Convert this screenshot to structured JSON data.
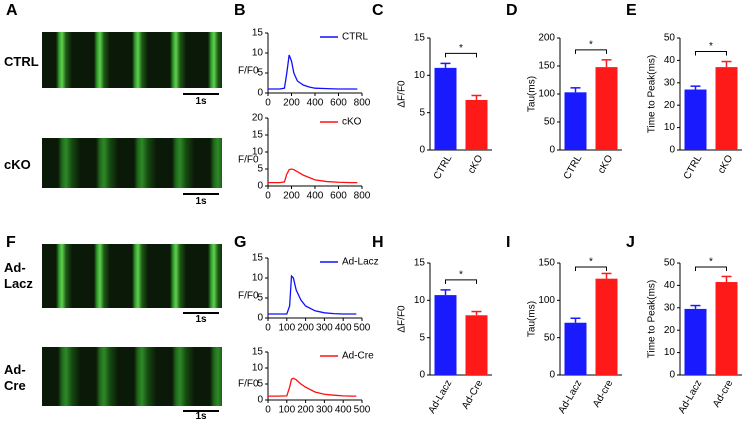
{
  "panel_letters": [
    "A",
    "B",
    "C",
    "D",
    "E",
    "F",
    "G",
    "H",
    "I",
    "J"
  ],
  "images": [
    {
      "label": "CTRL",
      "scale": "1s"
    },
    {
      "label": "cKO",
      "scale": "1s"
    },
    {
      "label": "Ad-\nLacz",
      "scale": "1s"
    },
    {
      "label": "Ad-\nCre",
      "scale": "1s"
    }
  ],
  "chart_data": [
    {
      "type": "line",
      "ylabel": "F/F0",
      "legend": "upper right",
      "xlim": [
        0,
        800
      ],
      "xticks": [
        0,
        200,
        400,
        600,
        800
      ],
      "ylim": [
        0,
        15
      ],
      "yticks": [
        0,
        5,
        10,
        15
      ],
      "x": [
        0,
        50,
        100,
        140,
        160,
        180,
        200,
        220,
        250,
        300,
        350,
        400,
        500,
        600,
        700,
        760
      ],
      "series": [
        {
          "name": "CTRL",
          "color": "#1010ff",
          "values": [
            1,
            1,
            1,
            1.2,
            5,
            9.5,
            8,
            5,
            3,
            2,
            1.5,
            1.2,
            1.1,
            1,
            1,
            1
          ]
        }
      ]
    },
    {
      "type": "line",
      "ylabel": "F/F0",
      "legend": "upper right",
      "xlim": [
        0,
        800
      ],
      "xticks": [
        0,
        200,
        400,
        600,
        800
      ],
      "ylim": [
        0,
        20
      ],
      "yticks": [
        0,
        5,
        10,
        15,
        20
      ],
      "x": [
        0,
        50,
        100,
        140,
        160,
        180,
        200,
        220,
        250,
        300,
        350,
        400,
        500,
        600,
        700,
        760
      ],
      "series": [
        {
          "name": "cKO",
          "color": "#ff1010",
          "values": [
            1,
            1,
            1,
            1.2,
            3.5,
            4.8,
            5,
            4.8,
            4.2,
            3.2,
            2.5,
            1.8,
            1.3,
            1.1,
            1,
            1
          ]
        }
      ]
    },
    {
      "type": "bar",
      "ylabel": "ΔF/F0",
      "ylim": [
        0,
        15
      ],
      "yticks": [
        0,
        5,
        10,
        15
      ],
      "categories": [
        "CTRL",
        "cKO"
      ],
      "values": [
        11,
        6.7
      ],
      "errors": [
        0.6,
        0.6
      ],
      "colors": [
        "#1a1aff",
        "#ff1a1a"
      ],
      "annotation": "*"
    },
    {
      "type": "bar",
      "ylabel": "Tau(ms)",
      "ylim": [
        0,
        200
      ],
      "yticks": [
        0,
        50,
        100,
        150,
        200
      ],
      "categories": [
        "CTRL",
        "cKO"
      ],
      "values": [
        103,
        148
      ],
      "errors": [
        8,
        13
      ],
      "colors": [
        "#1a1aff",
        "#ff1a1a"
      ],
      "annotation": "*"
    },
    {
      "type": "bar",
      "ylabel": "Time to Peak(ms)",
      "ylim": [
        0,
        50
      ],
      "yticks": [
        0,
        10,
        20,
        30,
        40,
        50
      ],
      "categories": [
        "CTRL",
        "cKO"
      ],
      "values": [
        27,
        37
      ],
      "errors": [
        1.5,
        2.5
      ],
      "colors": [
        "#1a1aff",
        "#ff1a1a"
      ],
      "annotation": "*"
    },
    {
      "type": "line",
      "ylabel": "F/F0",
      "legend": "upper right",
      "xlim": [
        0,
        500
      ],
      "xticks": [
        0,
        100,
        200,
        300,
        400,
        500
      ],
      "ylim": [
        0,
        15
      ],
      "yticks": [
        0,
        5,
        10,
        15
      ],
      "x": [
        0,
        50,
        100,
        115,
        125,
        135,
        150,
        175,
        200,
        250,
        300,
        350,
        400,
        450,
        470
      ],
      "series": [
        {
          "name": "Ad-Lacz",
          "color": "#1010ff",
          "values": [
            1,
            1,
            1,
            3,
            10.5,
            10,
            7,
            4.5,
            3,
            1.8,
            1.3,
            1.1,
            1,
            1,
            1
          ]
        }
      ]
    },
    {
      "type": "line",
      "ylabel": "F/F0",
      "legend": "upper right",
      "xlim": [
        0,
        500
      ],
      "xticks": [
        0,
        100,
        200,
        300,
        400,
        500
      ],
      "ylim": [
        0,
        15
      ],
      "yticks": [
        0,
        5,
        10,
        15
      ],
      "x": [
        0,
        50,
        100,
        115,
        125,
        135,
        150,
        175,
        200,
        250,
        300,
        350,
        400,
        450,
        470
      ],
      "series": [
        {
          "name": "Ad-Cre",
          "color": "#ff1010",
          "values": [
            1.2,
            1.2,
            1.3,
            4,
            6.5,
            6.8,
            6.3,
            5,
            4,
            2.5,
            1.8,
            1.5,
            1.3,
            1.2,
            1.2
          ]
        }
      ]
    },
    {
      "type": "bar",
      "ylabel": "ΔF/F0",
      "ylim": [
        0,
        15
      ],
      "yticks": [
        0,
        5,
        10,
        15
      ],
      "categories": [
        "Ad-Lacz",
        "Ad-Cre"
      ],
      "values": [
        10.7,
        8
      ],
      "errors": [
        0.7,
        0.5
      ],
      "colors": [
        "#1a1aff",
        "#ff1a1a"
      ],
      "annotation": "*"
    },
    {
      "type": "bar",
      "ylabel": "Tau(ms)",
      "ylim": [
        0,
        150
      ],
      "yticks": [
        0,
        50,
        100,
        150
      ],
      "categories": [
        "Ad-Lacz",
        "Ad-cre"
      ],
      "values": [
        70,
        129
      ],
      "errors": [
        6,
        7
      ],
      "colors": [
        "#1a1aff",
        "#ff1a1a"
      ],
      "annotation": "*"
    },
    {
      "type": "bar",
      "ylabel": "Time to Peak(ms)",
      "ylim": [
        0,
        50
      ],
      "yticks": [
        0,
        10,
        20,
        30,
        40,
        50
      ],
      "categories": [
        "Ad-Lacz",
        "Ad-cre"
      ],
      "values": [
        29.5,
        41.5
      ],
      "errors": [
        1.5,
        2.5
      ],
      "colors": [
        "#1a1aff",
        "#ff1a1a"
      ],
      "annotation": "*"
    }
  ]
}
